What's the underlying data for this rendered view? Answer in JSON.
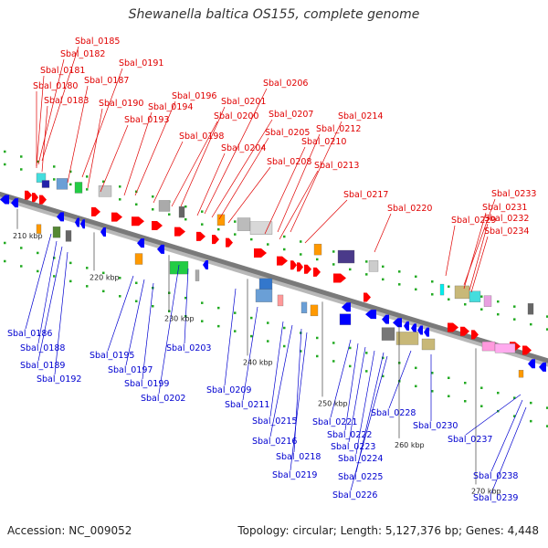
{
  "title": "Shewanella baltica OS155, complete genome",
  "footer": {
    "accession": "Accession: NC_009052",
    "summary": "Topology: circular; Length: 5,127,376 bp; Genes: 4,448"
  },
  "colors": {
    "forward_label": "#e00000",
    "reverse_label": "#0000d0",
    "backbone": "#8c8c8c",
    "dot": "#22aa22"
  },
  "ticks": [
    "210 kbp",
    "220 kbp",
    "230 kbp",
    "240 kbp",
    "250 kbp",
    "260 kbp",
    "270 kbp"
  ],
  "top_labels": [
    "Sbal_0185",
    "Sbal_0182",
    "Sbal_0181",
    "Sbal_0180",
    "Sbal_0183",
    "Sbal_0191",
    "Sbal_0187",
    "Sbal_0190",
    "Sbal_0193",
    "Sbal_0196",
    "Sbal_0194",
    "Sbal_0198",
    "Sbal_0201",
    "Sbal_0200",
    "Sbal_0206",
    "Sbal_0207",
    "Sbal_0205",
    "Sbal_0204",
    "Sbal_0208",
    "Sbal_0214",
    "Sbal_0212",
    "Sbal_0210",
    "Sbal_0213",
    "Sbal_0217",
    "Sbal_0220",
    "Sbal_0229",
    "Sbal_0233",
    "Sbal_0231",
    "Sbal_0232",
    "Sbal_0234"
  ],
  "bottom_labels": [
    "Sbal_0186",
    "Sbal_0188",
    "Sbal_0189",
    "Sbal_0192",
    "Sbal_0195",
    "Sbal_0197",
    "Sbal_0199",
    "Sbal_0202",
    "Sbal_0203",
    "Sbal_0209",
    "Sbal_0211",
    "Sbal_0215",
    "Sbal_0216",
    "Sbal_0218",
    "Sbal_0219",
    "Sbal_0221",
    "Sbal_0222",
    "Sbal_0223",
    "Sbal_0224",
    "Sbal_0225",
    "Sbal_0226",
    "Sbal_0228",
    "Sbal_0230",
    "Sbal_0237",
    "Sbal_0238",
    "Sbal_0239"
  ]
}
